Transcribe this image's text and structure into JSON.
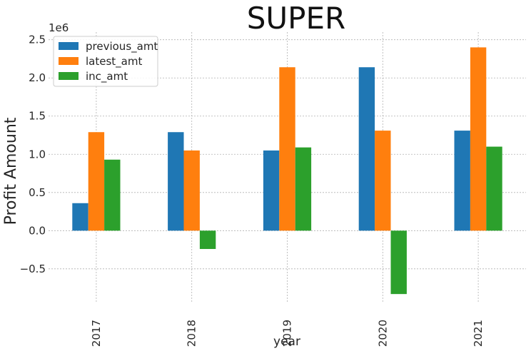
{
  "chart_data": {
    "type": "bar",
    "title": "SUPER",
    "xlabel": "year",
    "ylabel": "Profit Amount",
    "y_offset_label": "1e6",
    "categories": [
      "2017",
      "2018",
      "2019",
      "2020",
      "2021"
    ],
    "series": [
      {
        "name": "previous_amt",
        "color": "#1f77b4",
        "values": [
          360000,
          1290000,
          1050000,
          2140000,
          1310000
        ]
      },
      {
        "name": "latest_amt",
        "color": "#ff7f0e",
        "values": [
          1290000,
          1050000,
          2140000,
          1310000,
          2400000
        ]
      },
      {
        "name": "inc_amt",
        "color": "#2ca02c",
        "values": [
          930000,
          -240000,
          1090000,
          -830000,
          1100000
        ]
      }
    ],
    "yticks": [
      -0.5,
      0.0,
      0.5,
      1.0,
      1.5,
      2.0,
      2.5
    ],
    "ytick_labels": [
      "−0.5",
      "0.0",
      "0.5",
      "1.0",
      "1.5",
      "2.0",
      "2.5"
    ],
    "ylim": [
      -0.95,
      2.6
    ],
    "grid": true,
    "legend_position": "top-left"
  }
}
